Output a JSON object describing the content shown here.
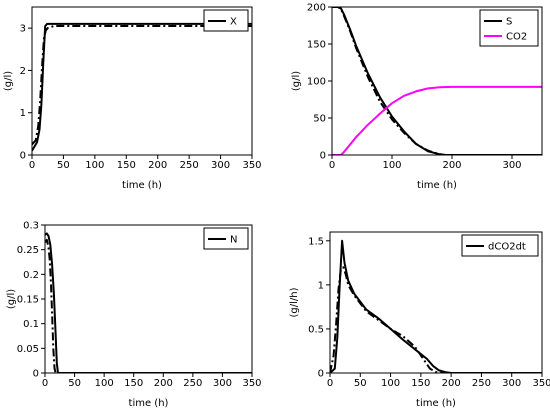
{
  "chart_data": [
    {
      "type": "line",
      "xlabel": "time (h)",
      "ylabel": "(g/l)",
      "xlim": [
        0,
        350
      ],
      "ylim": [
        0,
        3.5
      ],
      "xticks": [
        "0",
        "50",
        "100",
        "150",
        "200",
        "250",
        "300",
        "350"
      ],
      "yticks": [
        "0",
        "1",
        "2",
        "3"
      ],
      "grid": false,
      "legend_position": "top-right",
      "series": [
        {
          "name": "X",
          "style": "solid",
          "color": "#000000",
          "x": [
            0,
            8,
            12,
            15,
            18,
            21,
            24,
            350
          ],
          "y": [
            0.1,
            0.3,
            0.6,
            1.2,
            2.2,
            3.05,
            3.1,
            3.1
          ]
        },
        {
          "style": "dashdot",
          "color": "#000000",
          "x": [
            0,
            6,
            10,
            13,
            16,
            19,
            22,
            25,
            35,
            350
          ],
          "y": [
            0.25,
            0.35,
            0.7,
            1.3,
            2.1,
            2.75,
            2.95,
            3.0,
            3.05,
            3.05
          ]
        }
      ]
    },
    {
      "type": "line",
      "xlabel": "time (h)",
      "ylabel": "(g/l)",
      "xlim": [
        0,
        350
      ],
      "ylim": [
        0,
        200
      ],
      "xticks": [
        "0",
        "100",
        "200",
        "300"
      ],
      "yticks": [
        "0",
        "50",
        "100",
        "150",
        "200"
      ],
      "grid": false,
      "legend_position": "top-right",
      "series": [
        {
          "name": "S",
          "style": "solid",
          "color": "#000000",
          "x": [
            0,
            10,
            15,
            20,
            30,
            40,
            60,
            80,
            100,
            120,
            140,
            160,
            180,
            190,
            200,
            350
          ],
          "y": [
            200,
            200,
            198,
            190,
            170,
            148,
            110,
            78,
            52,
            32,
            15,
            5,
            1,
            0,
            0,
            0
          ]
        },
        {
          "style": "dashdot",
          "color": "#000000",
          "x": [
            0,
            10,
            15,
            20,
            30,
            40,
            60,
            80,
            100,
            120,
            140,
            160,
            175,
            185,
            200,
            350
          ],
          "y": [
            200,
            200,
            197,
            188,
            168,
            145,
            105,
            72,
            48,
            30,
            15,
            6,
            2,
            0,
            0,
            0
          ]
        },
        {
          "name": "CO2",
          "style": "solid",
          "color": "#ff00ff",
          "x": [
            0,
            15,
            20,
            30,
            40,
            60,
            80,
            100,
            120,
            140,
            160,
            180,
            200,
            250,
            300,
            350
          ],
          "y": [
            0,
            0,
            4,
            14,
            24,
            41,
            56,
            70,
            80,
            86,
            90,
            91.5,
            92,
            92,
            92,
            92
          ]
        }
      ]
    },
    {
      "type": "line",
      "xlabel": "time (h)",
      "ylabel": "(g/l)",
      "xlim": [
        0,
        350
      ],
      "ylim": [
        0,
        0.3
      ],
      "xticks": [
        "0",
        "50",
        "100",
        "150",
        "200",
        "250",
        "300",
        "350"
      ],
      "yticks": [
        "0",
        "0.05",
        "0.1",
        "0.15",
        "0.2",
        "0.25",
        "0.3"
      ],
      "grid": false,
      "legend_position": "top-right",
      "series": [
        {
          "name": "N",
          "style": "solid",
          "color": "#000000",
          "x": [
            0,
            3,
            6,
            9,
            12,
            15,
            18,
            20,
            22,
            350
          ],
          "y": [
            0.28,
            0.283,
            0.278,
            0.26,
            0.22,
            0.16,
            0.08,
            0.02,
            0,
            0
          ]
        },
        {
          "style": "dashdot",
          "color": "#000000",
          "x": [
            0,
            3,
            6,
            8,
            10,
            12,
            14,
            16,
            18,
            350
          ],
          "y": [
            0.265,
            0.27,
            0.255,
            0.23,
            0.185,
            0.12,
            0.05,
            0.01,
            0,
            0
          ]
        }
      ]
    },
    {
      "type": "line",
      "xlabel": "time (h)",
      "ylabel": "(g/l/h)",
      "xlim": [
        0,
        350
      ],
      "ylim": [
        0,
        1.6
      ],
      "xticks": [
        "0",
        "50",
        "100",
        "150",
        "200",
        "250",
        "300",
        "350"
      ],
      "yticks": [
        "0",
        "0.5",
        "1",
        "1.5"
      ],
      "grid": false,
      "legend_position": "top-right",
      "series": [
        {
          "name": "dCO2dt",
          "style": "solid",
          "color": "#000000",
          "x": [
            0,
            8,
            12,
            16,
            20,
            24,
            30,
            40,
            60,
            80,
            100,
            120,
            140,
            160,
            170,
            180,
            190,
            200,
            350
          ],
          "y": [
            0,
            0.05,
            0.4,
            1.0,
            1.5,
            1.25,
            1.05,
            0.9,
            0.72,
            0.62,
            0.5,
            0.38,
            0.27,
            0.16,
            0.08,
            0.03,
            0.01,
            0,
            0
          ]
        },
        {
          "style": "dashdot",
          "color": "#000000",
          "x": [
            0,
            6,
            10,
            14,
            18,
            22,
            26,
            30,
            40,
            60,
            80,
            100,
            120,
            140,
            155,
            165,
            175,
            185,
            350
          ],
          "y": [
            0,
            0.2,
            0.55,
            0.95,
            1.18,
            1.2,
            1.12,
            1.0,
            0.88,
            0.7,
            0.6,
            0.5,
            0.42,
            0.3,
            0.15,
            0.05,
            0.01,
            0,
            0
          ]
        }
      ]
    }
  ]
}
